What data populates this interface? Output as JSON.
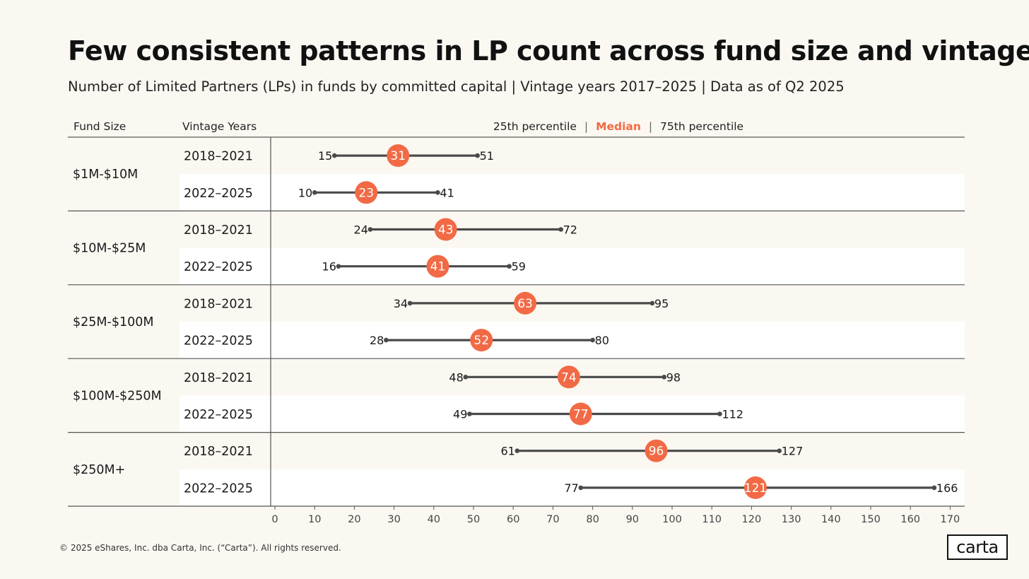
{
  "title": "Few consistent patterns in LP count across fund size and vintage",
  "subtitle": "Number of Limited Partners (LPs) in funds by committed capital | Vintage years 2017–2025 | Data as of Q2 2025",
  "footer": {
    "copyright": "© 2025 eShares, Inc. dba Carta, Inc. (“Carta”). All rights reserved.",
    "logo_text": "carta"
  },
  "chart_data": {
    "type": "dumbbell",
    "column_headers": {
      "fund_size": "Fund Size",
      "vintage_years": "Vintage Years"
    },
    "legend": {
      "p25": "25th percentile",
      "median": "Median",
      "p75": "75th percentile",
      "separator": "|"
    },
    "xlim": [
      0,
      170
    ],
    "x_ticks": [
      0,
      10,
      20,
      30,
      40,
      50,
      60,
      70,
      80,
      90,
      100,
      110,
      120,
      130,
      140,
      150,
      160,
      170
    ],
    "groups": [
      {
        "fund_size": "$1M-$10M",
        "rows": [
          {
            "vintage": "2018–2021",
            "p25": 15,
            "median": 31,
            "p75": 51
          },
          {
            "vintage": "2022–2025",
            "p25": 10,
            "median": 23,
            "p75": 41
          }
        ]
      },
      {
        "fund_size": "$10M-$25M",
        "rows": [
          {
            "vintage": "2018–2021",
            "p25": 24,
            "median": 43,
            "p75": 72
          },
          {
            "vintage": "2022–2025",
            "p25": 16,
            "median": 41,
            "p75": 59
          }
        ]
      },
      {
        "fund_size": "$25M-$100M",
        "rows": [
          {
            "vintage": "2018–2021",
            "p25": 34,
            "median": 63,
            "p75": 95
          },
          {
            "vintage": "2022–2025",
            "p25": 28,
            "median": 52,
            "p75": 80
          }
        ]
      },
      {
        "fund_size": "$100M-$250M",
        "rows": [
          {
            "vintage": "2018–2021",
            "p25": 48,
            "median": 74,
            "p75": 98
          },
          {
            "vintage": "2022–2025",
            "p25": 49,
            "median": 77,
            "p75": 112
          }
        ]
      },
      {
        "fund_size": "$250M+",
        "rows": [
          {
            "vintage": "2018–2021",
            "p25": 61,
            "median": 96,
            "p75": 127
          },
          {
            "vintage": "2022–2025",
            "p25": 77,
            "median": 121,
            "p75": 166
          }
        ]
      }
    ]
  },
  "colors": {
    "background": "#fbf8f2",
    "band": "#ffffff",
    "median": "#f26a45",
    "line": "#4a4a4a",
    "text": "#1a1a1a",
    "grid": "#555555"
  }
}
